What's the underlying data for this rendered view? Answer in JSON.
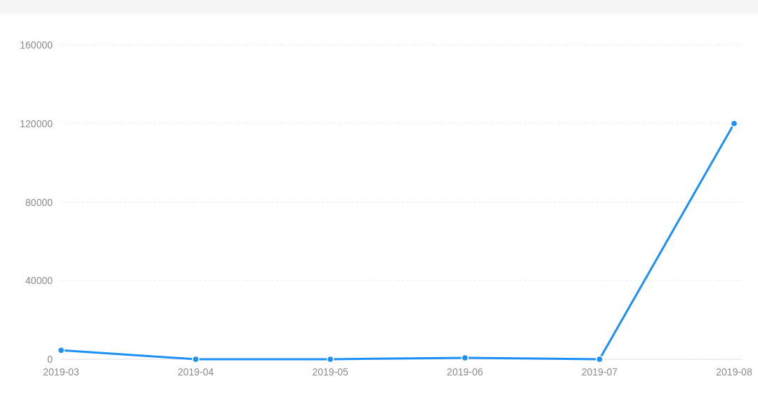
{
  "chart_data": {
    "type": "line",
    "categories": [
      "2019-03",
      "2019-04",
      "2019-05",
      "2019-06",
      "2019-07",
      "2019-08"
    ],
    "series": [
      {
        "color": "#1e90f5",
        "values": [
          4600,
          0,
          0,
          700,
          0,
          120000
        ]
      }
    ],
    "ylim": [
      0,
      160000
    ],
    "yticks": [
      0,
      40000,
      80000,
      120000,
      160000
    ],
    "grid": "y",
    "marker": "circle",
    "line_style": "solid"
  }
}
